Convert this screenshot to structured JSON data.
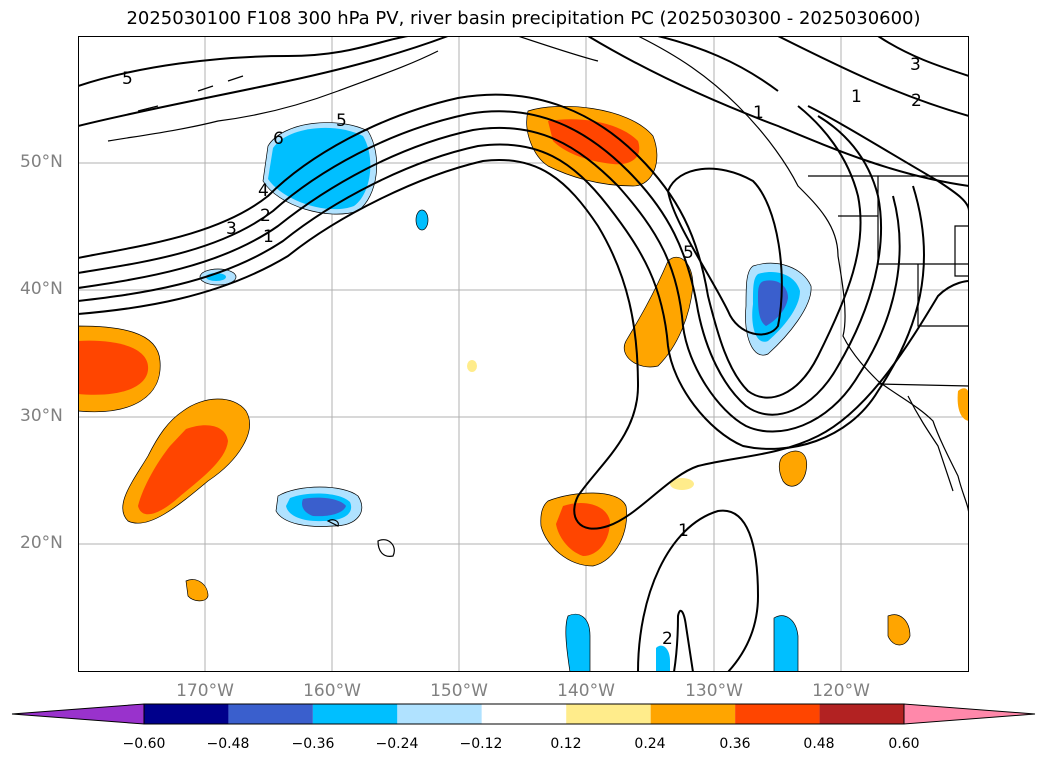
{
  "title": "2025030100 F108 300 hPa PV, river basin precipitation PC (2025030300 - 2025030600)",
  "lat_labels": [
    "50°N",
    "40°N",
    "30°N",
    "20°N"
  ],
  "lon_labels": [
    "170°W",
    "160°W",
    "150°W",
    "140°W",
    "130°W",
    "120°W"
  ],
  "contour_labels": [
    "5",
    "6",
    "5",
    "4",
    "3",
    "2",
    "1",
    "5",
    "1",
    "1",
    "3",
    "2",
    "1",
    "2"
  ],
  "colorbar": {
    "ticks": [
      "−0.60",
      "−0.48",
      "−0.36",
      "−0.24",
      "−0.12",
      "0.12",
      "0.24",
      "0.36",
      "0.48",
      "0.60"
    ],
    "colors": [
      "#9932cc",
      "#00008b",
      "#3a5fcd",
      "#00bfff",
      "#b0e2ff",
      "#ffffff",
      "#ffec8b",
      "#ffa500",
      "#ff4500",
      "#b22222",
      "#ff88aa"
    ]
  }
}
